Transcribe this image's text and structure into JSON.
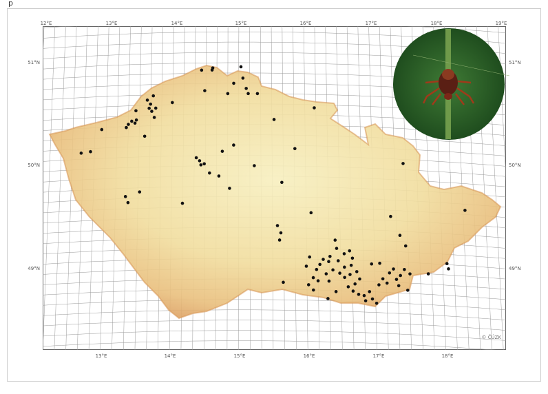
{
  "header": {
    "text": "p"
  },
  "map": {
    "top_lon_labels": [
      "12°E",
      "13°E",
      "14°E",
      "15°E",
      "16°E",
      "17°E",
      "18°E",
      "19°E"
    ],
    "bottom_lon_labels": [
      "13°E",
      "14°E",
      "15°E",
      "16°E",
      "17°E",
      "18°E"
    ],
    "left_lat_labels": [
      "51°N",
      "50°N",
      "49°N"
    ],
    "right_lat_labels": [
      "51°N",
      "50°N",
      "49°N"
    ],
    "copyright": "© ČÚZK",
    "points": [
      {
        "lon": 12.9,
        "lat": 50.38
      },
      {
        "lon": 12.6,
        "lat": 50.16
      },
      {
        "lon": 12.74,
        "lat": 50.17
      },
      {
        "lon": 13.27,
        "lat": 50.39
      },
      {
        "lon": 13.3,
        "lat": 50.42
      },
      {
        "lon": 13.35,
        "lat": 50.45
      },
      {
        "lon": 13.4,
        "lat": 50.43
      },
      {
        "lon": 13.42,
        "lat": 50.46
      },
      {
        "lon": 13.55,
        "lat": 50.3
      },
      {
        "lon": 13.41,
        "lat": 50.55
      },
      {
        "lon": 13.58,
        "lat": 50.65
      },
      {
        "lon": 13.63,
        "lat": 50.61
      },
      {
        "lon": 13.67,
        "lat": 50.69
      },
      {
        "lon": 13.65,
        "lat": 50.54
      },
      {
        "lon": 13.69,
        "lat": 50.48
      },
      {
        "lon": 13.61,
        "lat": 50.57
      },
      {
        "lon": 13.71,
        "lat": 50.57
      },
      {
        "lon": 13.96,
        "lat": 50.62
      },
      {
        "lon": 14.4,
        "lat": 50.93
      },
      {
        "lon": 14.56,
        "lat": 50.93
      },
      {
        "lon": 14.57,
        "lat": 50.95
      },
      {
        "lon": 14.45,
        "lat": 50.73
      },
      {
        "lon": 14.8,
        "lat": 50.7
      },
      {
        "lon": 14.89,
        "lat": 50.8
      },
      {
        "lon": 15.0,
        "lat": 50.96
      },
      {
        "lon": 15.03,
        "lat": 50.85
      },
      {
        "lon": 15.08,
        "lat": 50.75
      },
      {
        "lon": 15.11,
        "lat": 50.7
      },
      {
        "lon": 15.25,
        "lat": 50.7
      },
      {
        "lon": 15.5,
        "lat": 50.45
      },
      {
        "lon": 16.11,
        "lat": 50.57
      },
      {
        "lon": 14.33,
        "lat": 50.08
      },
      {
        "lon": 14.4,
        "lat": 50.01
      },
      {
        "lon": 14.45,
        "lat": 50.02
      },
      {
        "lon": 14.38,
        "lat": 50.05
      },
      {
        "lon": 14.53,
        "lat": 49.93
      },
      {
        "lon": 14.67,
        "lat": 49.9
      },
      {
        "lon": 14.72,
        "lat": 50.14
      },
      {
        "lon": 14.89,
        "lat": 50.2
      },
      {
        "lon": 15.2,
        "lat": 50.0
      },
      {
        "lon": 15.61,
        "lat": 49.84
      },
      {
        "lon": 15.81,
        "lat": 50.17
      },
      {
        "lon": 14.83,
        "lat": 49.78
      },
      {
        "lon": 13.28,
        "lat": 49.72
      },
      {
        "lon": 13.32,
        "lat": 49.66
      },
      {
        "lon": 13.49,
        "lat": 49.76
      },
      {
        "lon": 14.13,
        "lat": 49.64
      },
      {
        "lon": 16.04,
        "lat": 49.55
      },
      {
        "lon": 15.54,
        "lat": 49.42
      },
      {
        "lon": 15.59,
        "lat": 49.35
      },
      {
        "lon": 15.57,
        "lat": 49.28
      },
      {
        "lon": 17.43,
        "lat": 50.06
      },
      {
        "lon": 17.22,
        "lat": 49.54
      },
      {
        "lon": 17.35,
        "lat": 49.36
      },
      {
        "lon": 17.43,
        "lat": 49.26
      },
      {
        "lon": 18.33,
        "lat": 49.64
      },
      {
        "lon": 18.03,
        "lat": 49.11
      },
      {
        "lon": 18.05,
        "lat": 49.06
      },
      {
        "lon": 17.75,
        "lat": 49.0
      },
      {
        "lon": 15.62,
        "lat": 48.87
      },
      {
        "lon": 16.39,
        "lat": 49.29
      },
      {
        "lon": 16.41,
        "lat": 49.21
      },
      {
        "lon": 16.31,
        "lat": 49.13
      },
      {
        "lon": 16.21,
        "lat": 49.1
      },
      {
        "lon": 16.16,
        "lat": 49.05
      },
      {
        "lon": 16.29,
        "lat": 49.08
      },
      {
        "lon": 16.43,
        "lat": 49.09
      },
      {
        "lon": 16.52,
        "lat": 49.16
      },
      {
        "lon": 16.6,
        "lat": 49.19
      },
      {
        "lon": 16.64,
        "lat": 49.12
      },
      {
        "lon": 16.62,
        "lat": 49.05
      },
      {
        "lon": 16.52,
        "lat": 49.03
      },
      {
        "lon": 16.45,
        "lat": 48.97
      },
      {
        "lon": 16.35,
        "lat": 49.0
      },
      {
        "lon": 16.25,
        "lat": 48.96
      },
      {
        "lon": 16.11,
        "lat": 49.0
      },
      {
        "lon": 16.06,
        "lat": 48.92
      },
      {
        "lon": 16.13,
        "lat": 48.89
      },
      {
        "lon": 15.99,
        "lat": 48.85
      },
      {
        "lon": 16.06,
        "lat": 48.8
      },
      {
        "lon": 16.29,
        "lat": 48.89
      },
      {
        "lon": 16.52,
        "lat": 48.93
      },
      {
        "lon": 16.6,
        "lat": 48.96
      },
      {
        "lon": 16.7,
        "lat": 48.99
      },
      {
        "lon": 16.74,
        "lat": 48.92
      },
      {
        "lon": 16.67,
        "lat": 48.87
      },
      {
        "lon": 16.57,
        "lat": 48.84
      },
      {
        "lon": 16.64,
        "lat": 48.8
      },
      {
        "lon": 16.72,
        "lat": 48.77
      },
      {
        "lon": 16.8,
        "lat": 48.76
      },
      {
        "lon": 16.88,
        "lat": 48.8
      },
      {
        "lon": 16.92,
        "lat": 48.73
      },
      {
        "lon": 16.98,
        "lat": 48.69
      },
      {
        "lon": 16.82,
        "lat": 48.71
      },
      {
        "lon": 17.02,
        "lat": 48.87
      },
      {
        "lon": 17.08,
        "lat": 48.93
      },
      {
        "lon": 17.14,
        "lat": 48.89
      },
      {
        "lon": 17.18,
        "lat": 48.99
      },
      {
        "lon": 17.24,
        "lat": 49.03
      },
      {
        "lon": 17.28,
        "lat": 48.93
      },
      {
        "lon": 17.34,
        "lat": 48.97
      },
      {
        "lon": 17.31,
        "lat": 48.87
      },
      {
        "lon": 17.4,
        "lat": 49.03
      },
      {
        "lon": 17.48,
        "lat": 48.99
      },
      {
        "lon": 17.44,
        "lat": 48.83
      },
      {
        "lon": 15.96,
        "lat": 49.03
      },
      {
        "lon": 16.01,
        "lat": 49.12
      },
      {
        "lon": 16.92,
        "lat": 49.07
      },
      {
        "lon": 17.04,
        "lat": 49.08
      },
      {
        "lon": 16.27,
        "lat": 48.72
      },
      {
        "lon": 16.39,
        "lat": 48.79
      }
    ]
  }
}
